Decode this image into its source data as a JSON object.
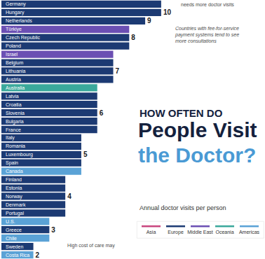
{
  "chart_data": {
    "type": "bar",
    "orientation": "horizontal",
    "stacked": true,
    "data_labels": true,
    "tick_labels": "y",
    "grid": false,
    "title": [
      "HOW OFTEN DO",
      "People Visit",
      "the Doctor?"
    ],
    "subtitle": "Annual doctor visits per person",
    "annotations": [
      [
        "needs more doctor visits"
      ],
      [
        "Countries with fee-for-service",
        "payment systems tend to see",
        "more consultations"
      ],
      [
        "High cost of care may"
      ]
    ],
    "xlim": [
      0,
      16.5
    ],
    "categories": [
      "Germany",
      "Hungary",
      "Netherlands",
      "Türkiye",
      "Czech Republic",
      "Poland",
      "Israel",
      "Belgium",
      "Lithuania",
      "Austria",
      "Australia",
      "Latvia",
      "Croatia",
      "Slovenia",
      "Bulgaria",
      "France",
      "Italy",
      "Romania",
      "Luxembourg",
      "Spain",
      "Canada",
      "Finland",
      "Estonia",
      "Norway",
      "Denmark",
      "Portugal",
      "U.S.",
      "Greece",
      "Chile",
      "Sweden",
      "Costa Rica"
    ],
    "series": [
      {
        "name": "Asia",
        "color": "#c9467f",
        "values": [
          null,
          null,
          null,
          null,
          null,
          null,
          null,
          null,
          null,
          null,
          null,
          null,
          null,
          null,
          null,
          null,
          null,
          null,
          null,
          null,
          null,
          null,
          null,
          null,
          null,
          null,
          null,
          null,
          null,
          null,
          null
        ],
        "value_labels": [
          null,
          null,
          null,
          null,
          null,
          null,
          null,
          null,
          null,
          null,
          null,
          null,
          null,
          null,
          null,
          null,
          null,
          null,
          null,
          null,
          null,
          null,
          null,
          null,
          null,
          null,
          null,
          null,
          null,
          null,
          null
        ]
      },
      {
        "name": "Europe",
        "color": "#1c3a73",
        "values": [
          10,
          10,
          9,
          null,
          8,
          8,
          null,
          7,
          7,
          7,
          null,
          6,
          6,
          6,
          6,
          6,
          5,
          5,
          5,
          5,
          null,
          4,
          4,
          4,
          4,
          4,
          null,
          3,
          null,
          2,
          null
        ],
        "value_labels": [
          null,
          "10",
          "9",
          null,
          "8",
          null,
          null,
          null,
          "7",
          null,
          null,
          null,
          null,
          "6",
          null,
          null,
          null,
          null,
          "5",
          null,
          null,
          null,
          null,
          "4",
          null,
          null,
          null,
          "3",
          null,
          null,
          null
        ]
      },
      {
        "name": "Middle East",
        "color": "#6b4fb3",
        "values": [
          null,
          null,
          null,
          8,
          null,
          null,
          7,
          null,
          null,
          null,
          null,
          null,
          null,
          null,
          null,
          null,
          null,
          null,
          null,
          null,
          null,
          null,
          null,
          null,
          null,
          null,
          null,
          null,
          null,
          null,
          null
        ],
        "value_labels": [
          null,
          null,
          null,
          null,
          null,
          null,
          null,
          null,
          null,
          null,
          null,
          null,
          null,
          null,
          null,
          null,
          null,
          null,
          null,
          null,
          null,
          null,
          null,
          null,
          null,
          null,
          null,
          null,
          null,
          null,
          null
        ]
      },
      {
        "name": "Oceania",
        "color": "#3aa89b",
        "values": [
          null,
          null,
          null,
          null,
          null,
          null,
          null,
          null,
          null,
          null,
          6,
          null,
          null,
          null,
          null,
          null,
          null,
          null,
          null,
          null,
          null,
          null,
          null,
          null,
          null,
          null,
          null,
          null,
          null,
          null,
          null
        ],
        "value_labels": [
          null,
          null,
          null,
          null,
          null,
          null,
          null,
          null,
          null,
          null,
          null,
          null,
          null,
          null,
          null,
          null,
          null,
          null,
          null,
          null,
          null,
          null,
          null,
          null,
          null,
          null,
          null,
          null,
          null,
          null,
          null
        ]
      },
      {
        "name": "Americas",
        "color": "#5aa2d6",
        "values": [
          null,
          null,
          null,
          null,
          null,
          null,
          null,
          null,
          null,
          null,
          null,
          null,
          null,
          null,
          null,
          null,
          null,
          null,
          null,
          null,
          5,
          null,
          null,
          null,
          null,
          null,
          3,
          null,
          3,
          null,
          2
        ],
        "value_labels": [
          null,
          null,
          null,
          null,
          null,
          null,
          null,
          null,
          null,
          null,
          null,
          null,
          null,
          null,
          null,
          null,
          null,
          null,
          null,
          null,
          null,
          null,
          null,
          null,
          null,
          null,
          null,
          null,
          null,
          null,
          "2"
        ]
      }
    ]
  }
}
